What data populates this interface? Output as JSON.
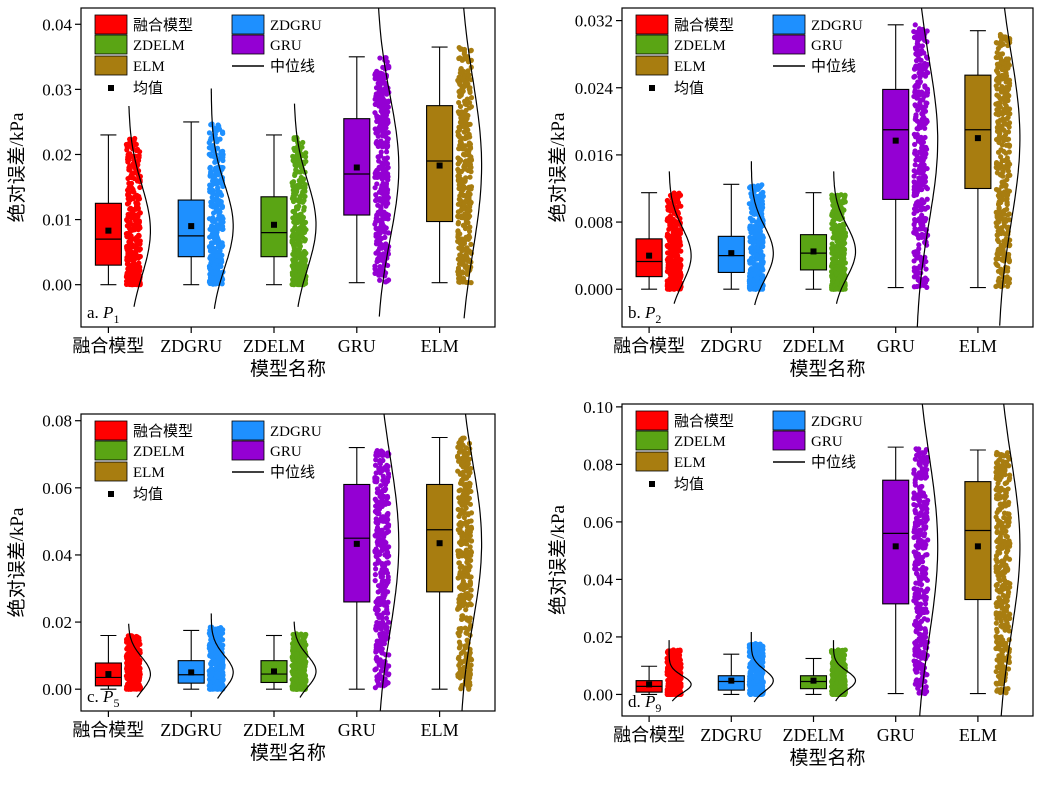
{
  "legend_entries": [
    "融合模型",
    "ZDGRU",
    "ZDELM",
    "GRU",
    "ELM",
    "中位线",
    "均值"
  ],
  "series_colors": {
    "融合模型": "#ff0000",
    "ZDGRU": "#1e90ff",
    "ZDELM": "#5aa514",
    "GRU": "#9400d3",
    "ELM": "#a87d10"
  },
  "chart_data": [
    {
      "type": "box",
      "panel_label": "a. ",
      "panel_var": "P",
      "panel_sub": "1",
      "categories": [
        "融合模型",
        "ZDGRU",
        "ZDELM",
        "GRU",
        "ELM"
      ],
      "xlabel": "模型名称",
      "ylabel": "绝对误差/kPa",
      "ylim": [
        -0.0065,
        0.0425
      ],
      "yticks": [
        0.0,
        0.01,
        0.02,
        0.03,
        0.04
      ],
      "tick_decimals": 2,
      "series": [
        {
          "name": "融合模型",
          "min": 0.0,
          "q1": 0.003,
          "median": 0.007,
          "q3": 0.0125,
          "max": 0.023,
          "mean": 0.0083,
          "data_max": 0.0225
        },
        {
          "name": "ZDGRU",
          "min": 0.0,
          "q1": 0.0043,
          "median": 0.0075,
          "q3": 0.013,
          "max": 0.025,
          "mean": 0.009,
          "data_max": 0.0247
        },
        {
          "name": "ZDELM",
          "min": 0.0,
          "q1": 0.0043,
          "median": 0.008,
          "q3": 0.0135,
          "max": 0.023,
          "mean": 0.0092,
          "data_max": 0.0228
        },
        {
          "name": "GRU",
          "min": 0.0003,
          "q1": 0.0107,
          "median": 0.017,
          "q3": 0.0255,
          "max": 0.035,
          "mean": 0.018,
          "data_max": 0.035
        },
        {
          "name": "ELM",
          "min": 0.0003,
          "q1": 0.0097,
          "median": 0.019,
          "q3": 0.0275,
          "max": 0.0365,
          "mean": 0.0183,
          "data_max": 0.0367
        }
      ]
    },
    {
      "type": "box",
      "panel_label": "b. ",
      "panel_var": "P",
      "panel_sub": "2",
      "categories": [
        "融合模型",
        "ZDGRU",
        "ZDELM",
        "GRU",
        "ELM"
      ],
      "xlabel": "模型名称",
      "ylabel": "绝对误差/kPa",
      "ylim": [
        -0.0045,
        0.0335
      ],
      "yticks": [
        0.0,
        0.008,
        0.016,
        0.024,
        0.032
      ],
      "tick_decimals": 3,
      "series": [
        {
          "name": "融合模型",
          "min": 0.0,
          "q1": 0.0015,
          "median": 0.0033,
          "q3": 0.006,
          "max": 0.0115,
          "mean": 0.004,
          "data_max": 0.0115
        },
        {
          "name": "ZDGRU",
          "min": 0.0,
          "q1": 0.002,
          "median": 0.004,
          "q3": 0.0063,
          "max": 0.0125,
          "mean": 0.0043,
          "data_max": 0.0125
        },
        {
          "name": "ZDELM",
          "min": 0.0,
          "q1": 0.0023,
          "median": 0.0043,
          "q3": 0.0065,
          "max": 0.0115,
          "mean": 0.0045,
          "data_max": 0.0115
        },
        {
          "name": "GRU",
          "min": 0.0002,
          "q1": 0.0107,
          "median": 0.019,
          "q3": 0.0238,
          "max": 0.0315,
          "mean": 0.0177,
          "data_max": 0.0315
        },
        {
          "name": "ELM",
          "min": 0.0002,
          "q1": 0.012,
          "median": 0.019,
          "q3": 0.0255,
          "max": 0.0308,
          "mean": 0.018,
          "data_max": 0.0305
        }
      ]
    },
    {
      "type": "box",
      "panel_label": "c. ",
      "panel_var": "P",
      "panel_sub": "5",
      "categories": [
        "融合模型",
        "ZDGRU",
        "ZDELM",
        "GRU",
        "ELM"
      ],
      "xlabel": "模型名称",
      "ylabel": "绝对误差/kPa",
      "ylim": [
        -0.0065,
        0.082
      ],
      "yticks": [
        0.0,
        0.02,
        0.04,
        0.06,
        0.08
      ],
      "tick_decimals": 2,
      "series": [
        {
          "name": "融合模型",
          "min": 0.0,
          "q1": 0.001,
          "median": 0.0035,
          "q3": 0.0078,
          "max": 0.016,
          "mean": 0.0045,
          "data_max": 0.016
        },
        {
          "name": "ZDGRU",
          "min": 0.0,
          "q1": 0.0018,
          "median": 0.0043,
          "q3": 0.0085,
          "max": 0.0175,
          "mean": 0.005,
          "data_max": 0.0185
        },
        {
          "name": "ZDELM",
          "min": 0.0,
          "q1": 0.002,
          "median": 0.0045,
          "q3": 0.0085,
          "max": 0.016,
          "mean": 0.0053,
          "data_max": 0.0165
        },
        {
          "name": "GRU",
          "min": 0.0,
          "q1": 0.026,
          "median": 0.045,
          "q3": 0.061,
          "max": 0.072,
          "mean": 0.0433,
          "data_max": 0.072
        },
        {
          "name": "ELM",
          "min": 0.0,
          "q1": 0.029,
          "median": 0.0475,
          "q3": 0.061,
          "max": 0.075,
          "mean": 0.0435,
          "data_max": 0.075
        }
      ]
    },
    {
      "type": "box",
      "panel_label": "d. ",
      "panel_var": "P",
      "panel_sub": "9",
      "categories": [
        "融合模型",
        "ZDGRU",
        "ZDELM",
        "GRU",
        "ELM"
      ],
      "xlabel": "模型名称",
      "ylabel": "绝对误差/kPa",
      "ylim": [
        -0.0075,
        0.101
      ],
      "yticks": [
        0.0,
        0.02,
        0.04,
        0.06,
        0.08,
        0.1
      ],
      "tick_decimals": 2,
      "series": [
        {
          "name": "融合模型",
          "min": 0.0,
          "q1": 0.0008,
          "median": 0.0028,
          "q3": 0.0048,
          "max": 0.0098,
          "mean": 0.0035,
          "data_max": 0.0155
        },
        {
          "name": "ZDGRU",
          "min": 0.0,
          "q1": 0.0015,
          "median": 0.0045,
          "q3": 0.0065,
          "max": 0.014,
          "mean": 0.0048,
          "data_max": 0.0178
        },
        {
          "name": "ZDELM",
          "min": 0.0,
          "q1": 0.002,
          "median": 0.0045,
          "q3": 0.0065,
          "max": 0.0125,
          "mean": 0.0048,
          "data_max": 0.0155
        },
        {
          "name": "GRU",
          "min": 0.0003,
          "q1": 0.0315,
          "median": 0.056,
          "q3": 0.0745,
          "max": 0.086,
          "mean": 0.0515,
          "data_max": 0.0855
        },
        {
          "name": "ELM",
          "min": 0.0003,
          "q1": 0.033,
          "median": 0.057,
          "q3": 0.074,
          "max": 0.085,
          "mean": 0.0515,
          "data_max": 0.0845
        }
      ]
    }
  ]
}
